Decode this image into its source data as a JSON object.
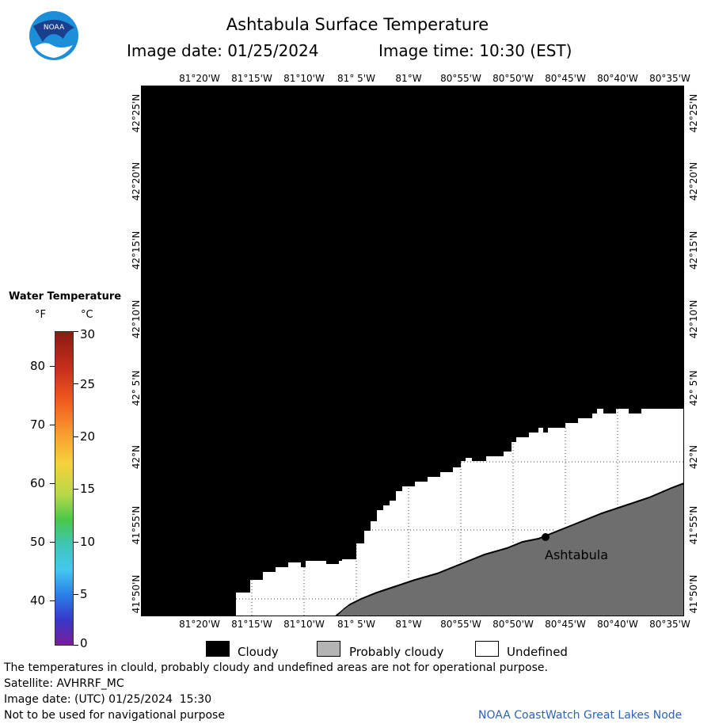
{
  "header": {
    "title": "Ashtabula Surface Temperature",
    "image_date": "Image date: 01/25/2024",
    "image_time": "Image time: 10:30 (EST)"
  },
  "logo": {
    "text": "NOAA",
    "colors": {
      "outer_blue": "#1d8fd8",
      "inner_navy": "#1b3f8f"
    }
  },
  "map": {
    "longitude_labels": [
      "81°20'W",
      "81°15'W",
      "81°10'W",
      "81° 5'W",
      "81°W",
      "80°55'W",
      "80°50'W",
      "80°45'W",
      "80°40'W",
      "80°35'W"
    ],
    "latitude_labels": [
      "42°25'N",
      "42°20'N",
      "42°15'N",
      "42°10'N",
      "42° 5'N",
      "42°N",
      "41°55'N",
      "41°50'N"
    ],
    "city_label": "Ashtabula",
    "colors": {
      "cloudy": "#000000",
      "undefined": "#ffffff",
      "land": "#6e6e6e"
    }
  },
  "temperature_legend": {
    "title": "Water Temperature",
    "unit_f": "°F",
    "unit_c": "°C",
    "fahrenheit_ticks": [
      "80",
      "70",
      "60",
      "50",
      "40"
    ],
    "celsius_ticks": [
      "30",
      "25",
      "20",
      "15",
      "10",
      "5",
      "0"
    ]
  },
  "cloud_legend": {
    "cloudy": "Cloudy",
    "probably_cloudy": "Probably cloudy",
    "undefined": "Undefined"
  },
  "footer": {
    "warning": "The temperatures in clould, probably cloudy and undefined areas are not for operational purpose.",
    "satellite": "Satellite: AVHRRF_MC",
    "utc_date": "Image date: (UTC) 01/25/2024  15:30",
    "navigation": "Not to be used for navigational purpose",
    "credit": "NOAA CoastWatch Great Lakes Node"
  }
}
